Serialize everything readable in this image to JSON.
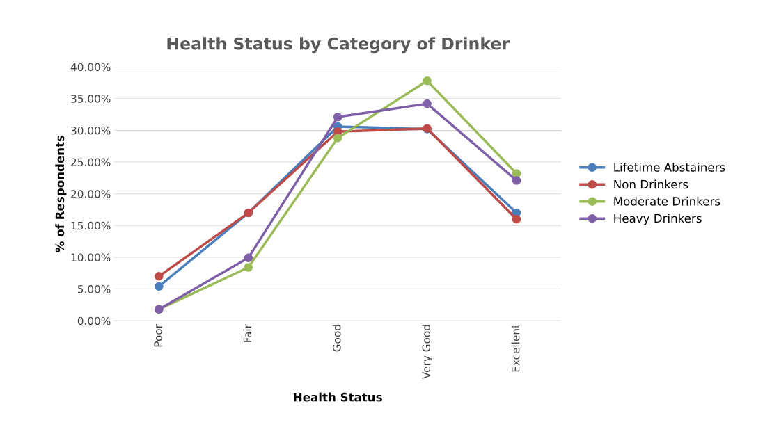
{
  "chart_data": {
    "type": "line",
    "title": "Health Status by Category of Drinker",
    "xlabel": "Health Status",
    "ylabel": "% of Respondents",
    "categories": [
      "Poor",
      "Fair",
      "Good",
      "Very Good",
      "Excellent"
    ],
    "series": [
      {
        "name": "Lifetime Abstainers",
        "color": "#4a7ebb",
        "values": [
          5.4,
          17.0,
          30.6,
          30.2,
          17.0
        ]
      },
      {
        "name": "Non Drinkers",
        "color": "#be4b48",
        "values": [
          7.0,
          17.0,
          29.8,
          30.3,
          16.0
        ]
      },
      {
        "name": "Moderate Drinkers",
        "color": "#9bbb59",
        "values": [
          1.8,
          8.4,
          28.8,
          37.8,
          23.2
        ]
      },
      {
        "name": "Heavy Drinkers",
        "color": "#7f60a8",
        "values": [
          1.8,
          9.9,
          32.1,
          34.2,
          22.1
        ]
      }
    ],
    "ylim": [
      0,
      40
    ],
    "yticks": [
      {
        "value": 0,
        "label": "0.00%"
      },
      {
        "value": 5,
        "label": "5.00%"
      },
      {
        "value": 10,
        "label": "10.00%"
      },
      {
        "value": 15,
        "label": "15.00%"
      },
      {
        "value": 20,
        "label": "20.00%"
      },
      {
        "value": 25,
        "label": "25.00%"
      },
      {
        "value": 30,
        "label": "30.00%"
      },
      {
        "value": 35,
        "label": "35.00%"
      },
      {
        "value": 40,
        "label": "40.00%"
      }
    ],
    "grid": "y",
    "legend": "right",
    "marker": "circle",
    "line_style": "solid"
  }
}
